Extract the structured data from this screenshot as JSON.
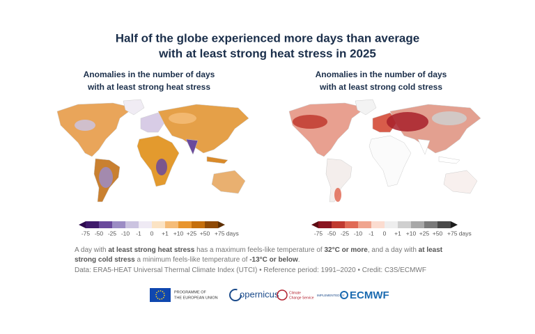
{
  "header": {
    "title": [
      "Half of the globe experienced more days than average",
      "with at least strong heat stress in 2025"
    ]
  },
  "panels": [
    {
      "subtitle": [
        "Anomalies in the number of days",
        "with at least strong heat stress"
      ],
      "legend": {
        "labels": [
          "-75",
          "-50",
          "-25",
          "-10",
          "-1",
          "0",
          "+1",
          "+10",
          "+25",
          "+50",
          "+75 days"
        ],
        "colors": [
          "#2d0a4e",
          "#3f1a6b",
          "#6a4a9c",
          "#9c8cc4",
          "#cbc3e0",
          "#efeaf4",
          "#fbe3c4",
          "#f5bc78",
          "#e8952e",
          "#c56f0c",
          "#8f4a05",
          "#5e2f02"
        ]
      }
    },
    {
      "subtitle": [
        "Anomalies in the number of days",
        "with at least strong cold stress"
      ],
      "legend": {
        "labels": [
          "-75",
          "-50",
          "-25",
          "-10",
          "-1",
          "0",
          "+1",
          "+10",
          "+25",
          "+50",
          "+75 days"
        ],
        "colors": [
          "#5c0b12",
          "#8a1520",
          "#c0392f",
          "#e06a55",
          "#f0a58f",
          "#fbdcd0",
          "#eeeeee",
          "#cfcfcf",
          "#a8a8a8",
          "#7a7a7a",
          "#4a4a4a",
          "#1c1c1c"
        ]
      }
    }
  ],
  "footnote": [
    {
      "text": "A day with ",
      "bold": false
    },
    {
      "text": "at least strong heat stress",
      "bold": true
    },
    {
      "text": " has a maximum feels-like temperature of ",
      "bold": false
    },
    {
      "text": "32°C or more",
      "bold": true
    },
    {
      "text": ", and a day with ",
      "bold": false
    },
    {
      "text": "at least strong cold stress",
      "bold": true
    },
    {
      "text": " a minimum feels-like temperature of ",
      "bold": false
    },
    {
      "text": "-13°C or below",
      "bold": true
    },
    {
      "text": ".",
      "bold": false
    }
  ],
  "source": "Data: ERA5-HEAT Universal Thermal Climate Index (UTCI) • Reference period: 1991–2020 • Credit: C3S/ECMWF",
  "logos": {
    "eu": [
      "PROGRAMME OF",
      "THE EUROPEAN UNION"
    ],
    "copernicus": "opernicus",
    "c3s": [
      "Climate",
      "Change Service"
    ],
    "implemented": "IMPLEMENTED BY",
    "ecmwf": "ECMWF"
  }
}
